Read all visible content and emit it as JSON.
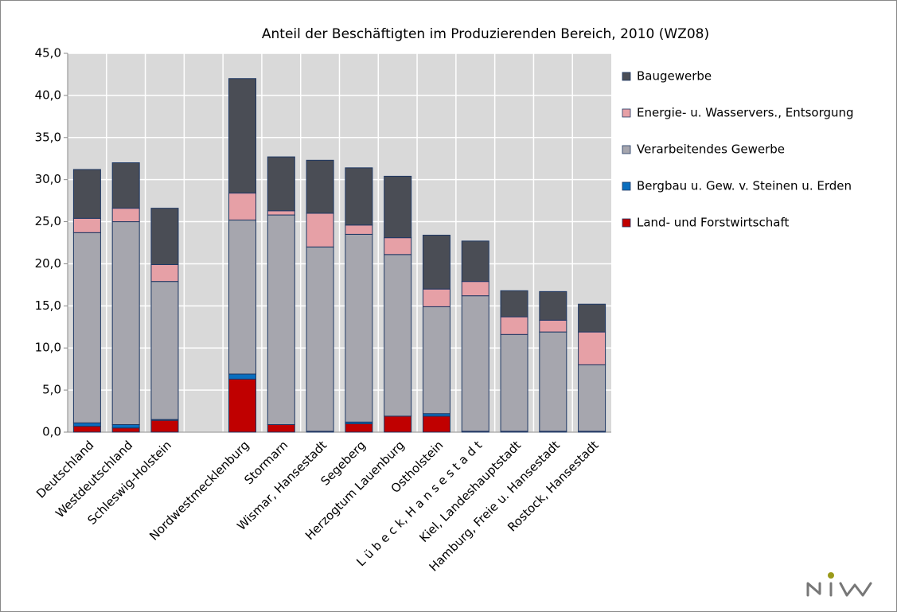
{
  "chart_data": {
    "type": "stacked_bar",
    "title": "Anteil der Beschäftigten im Produzierenden Bereich, 2010 (WZ08)",
    "categories": [
      "Deutschland",
      "Westdeutschland",
      "Schleswig-Holstein",
      null,
      "Nordwestmecklenburg",
      "Stormarn",
      "Wismar, Hansestadt",
      "Segeberg",
      "Herzogtum Lauenburg",
      "Ostholstein",
      "L ü b e c k, H a n s e s t a d t",
      "Kiel, Landeshauptstadt",
      "Hamburg, Freie u. Hansestadt",
      "Rostock, Hansestadt"
    ],
    "series": [
      {
        "name": "Land- und Forstwirtschaft",
        "color": "#c00000",
        "values": [
          0.7,
          0.5,
          1.4,
          null,
          6.3,
          0.9,
          0.1,
          1.0,
          1.9,
          1.9,
          0.1,
          0.1,
          0.1,
          0.1
        ]
      },
      {
        "name": "Bergbau u. Gew. v. Steinen u. Erden",
        "color": "#0a6ebe",
        "values": [
          0.4,
          0.4,
          0.1,
          null,
          0.6,
          0.0,
          0.0,
          0.2,
          0.0,
          0.3,
          0.0,
          0.0,
          0.0,
          0.0
        ]
      },
      {
        "name": "Verarbeitendes Gewerbe",
        "color": "#a6a6ae",
        "values": [
          22.6,
          24.1,
          16.4,
          null,
          18.3,
          24.9,
          21.9,
          22.3,
          19.2,
          12.7,
          16.1,
          11.5,
          11.8,
          7.9
        ]
      },
      {
        "name": "Energie- u. Wasservers., Entsorgung",
        "color": "#e6a0a6",
        "values": [
          1.7,
          1.6,
          2.0,
          null,
          3.2,
          0.5,
          4.0,
          1.1,
          2.0,
          2.1,
          1.7,
          2.1,
          1.4,
          3.9
        ]
      },
      {
        "name": "Baugewerbe",
        "color": "#4a4d55",
        "values": [
          5.8,
          5.4,
          6.7,
          null,
          13.6,
          6.4,
          6.3,
          6.8,
          7.3,
          6.4,
          4.8,
          3.1,
          3.4,
          3.3
        ]
      }
    ],
    "ylim": [
      0,
      45
    ],
    "yticks": [
      {
        "value": 0,
        "label": "0,0"
      },
      {
        "value": 5,
        "label": "5,0"
      },
      {
        "value": 10,
        "label": "10,0"
      },
      {
        "value": 15,
        "label": "15,0"
      },
      {
        "value": 20,
        "label": "20,0"
      },
      {
        "value": 25,
        "label": "25,0"
      },
      {
        "value": 30,
        "label": "30,0"
      },
      {
        "value": 35,
        "label": "35,0"
      },
      {
        "value": 40,
        "label": "40,0"
      },
      {
        "value": 45,
        "label": "45,0"
      }
    ],
    "grid": true,
    "legend": "right"
  }
}
